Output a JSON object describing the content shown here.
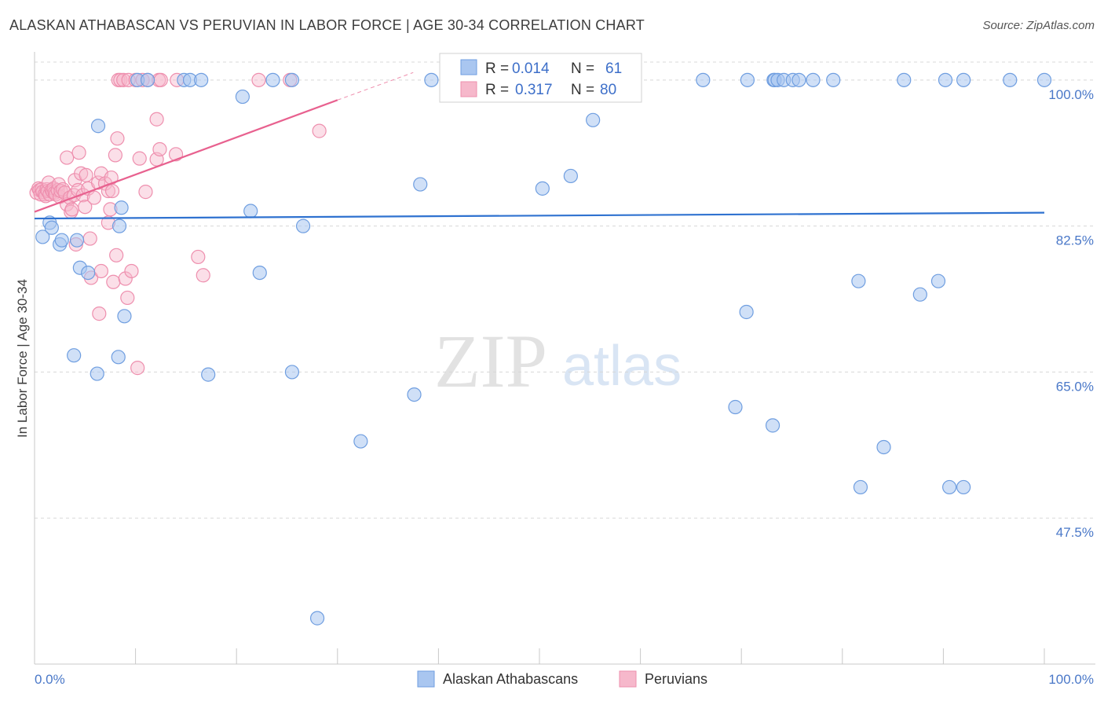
{
  "header": {
    "title": "ALASKAN ATHABASCAN VS PERUVIAN IN LABOR FORCE | AGE 30-34 CORRELATION CHART",
    "source": "Source: ZipAtlas.com"
  },
  "watermark": {
    "zip": "ZIP",
    "atlas": "atlas"
  },
  "colors": {
    "blue_fill": "#a9c6f0",
    "blue_stroke": "#6f9ee0",
    "blue_line": "#2f72d0",
    "pink_fill": "#f6b8cb",
    "pink_stroke": "#ee8fae",
    "pink_line": "#e8618f",
    "grid": "#d8d8d8",
    "axis_text": "#4a78c8"
  },
  "chart_data": {
    "type": "scatter",
    "title": "ALASKAN ATHABASCAN VS PERUVIAN IN LABOR FORCE | AGE 30-34 CORRELATION CHART",
    "ylabel": "In Labor Force | Age 30-34",
    "xlabel": "",
    "xlim": [
      0,
      100
    ],
    "ylim": [
      30,
      103
    ],
    "x_tick_labels": [
      "0.0%",
      "100.0%"
    ],
    "y_ticks": [
      {
        "value": 100.0,
        "label": "100.0%"
      },
      {
        "value": 82.5,
        "label": "82.5%"
      },
      {
        "value": 65.0,
        "label": "65.0%"
      },
      {
        "value": 47.5,
        "label": "47.5%"
      }
    ],
    "legend": {
      "position": "top-center",
      "entries": [
        {
          "r_label": "R =",
          "r_value": "0.014",
          "n_label": "N =",
          "n_value": "61"
        },
        {
          "r_label": "R =",
          "r_value": "0.317",
          "n_label": "N =",
          "n_value": "80"
        }
      ]
    },
    "series": [
      {
        "name": "Alaskan Athabascans",
        "trend": {
          "x": [
            0,
            100
          ],
          "y": [
            83.4,
            84.1
          ]
        },
        "points": [
          [
            0.8,
            81.2
          ],
          [
            1.5,
            82.9
          ],
          [
            1.7,
            82.3
          ],
          [
            2.5,
            80.3
          ],
          [
            2.7,
            80.8
          ],
          [
            4.2,
            80.8
          ],
          [
            4.5,
            77.5
          ],
          [
            5.3,
            76.9
          ],
          [
            3.9,
            67.0
          ],
          [
            6.3,
            94.5
          ],
          [
            6.2,
            64.8
          ],
          [
            8.4,
            82.5
          ],
          [
            8.6,
            84.7
          ],
          [
            8.9,
            71.7
          ],
          [
            8.3,
            66.8
          ],
          [
            10.2,
            100.0
          ],
          [
            11.2,
            100.0
          ],
          [
            14.8,
            100.0
          ],
          [
            15.4,
            100.0
          ],
          [
            16.5,
            100.0
          ],
          [
            17.2,
            64.7
          ],
          [
            20.6,
            98.0
          ],
          [
            21.4,
            84.3
          ],
          [
            22.3,
            76.9
          ],
          [
            23.6,
            100.0
          ],
          [
            25.5,
            100.0
          ],
          [
            25.5,
            65.0
          ],
          [
            26.6,
            82.5
          ],
          [
            28.0,
            35.5
          ],
          [
            32.3,
            56.7
          ],
          [
            37.6,
            62.3
          ],
          [
            38.2,
            87.5
          ],
          [
            39.3,
            100.0
          ],
          [
            50.3,
            87.0
          ],
          [
            53.1,
            88.5
          ],
          [
            55.3,
            95.2
          ],
          [
            66.2,
            100.0
          ],
          [
            69.4,
            60.8
          ],
          [
            70.6,
            100.0
          ],
          [
            70.5,
            72.2
          ],
          [
            73.1,
            58.6
          ],
          [
            73.2,
            100.0
          ],
          [
            73.3,
            100.0
          ],
          [
            73.6,
            100.0
          ],
          [
            74.2,
            100.0
          ],
          [
            75.1,
            100.0
          ],
          [
            75.7,
            100.0
          ],
          [
            77.1,
            100.0
          ],
          [
            79.1,
            100.0
          ],
          [
            81.6,
            75.9
          ],
          [
            81.8,
            51.2
          ],
          [
            84.1,
            56.0
          ],
          [
            86.1,
            100.0
          ],
          [
            87.7,
            74.3
          ],
          [
            89.5,
            75.9
          ],
          [
            90.2,
            100.0
          ],
          [
            90.6,
            51.2
          ],
          [
            92.0,
            51.2
          ],
          [
            92.0,
            100.0
          ],
          [
            96.6,
            100.0
          ],
          [
            100.0,
            100.0
          ]
        ]
      },
      {
        "name": "Peruvians",
        "trend": {
          "x": [
            0,
            30
          ],
          "y": [
            84.2,
            97.6
          ]
        },
        "trend_extension": {
          "x": [
            30,
            37.5
          ],
          "y": [
            97.6,
            100.9
          ]
        },
        "points": [
          [
            0.2,
            86.5
          ],
          [
            0.4,
            87.0
          ],
          [
            0.5,
            86.8
          ],
          [
            0.6,
            86.3
          ],
          [
            0.7,
            86.9
          ],
          [
            0.8,
            86.6
          ],
          [
            1.0,
            86.3
          ],
          [
            1.1,
            86.1
          ],
          [
            1.2,
            86.9
          ],
          [
            1.3,
            86.7
          ],
          [
            1.4,
            87.7
          ],
          [
            1.5,
            86.3
          ],
          [
            1.7,
            86.8
          ],
          [
            1.8,
            86.6
          ],
          [
            1.9,
            87.0
          ],
          [
            2.0,
            86.5
          ],
          [
            2.1,
            86.3
          ],
          [
            2.3,
            86.8
          ],
          [
            2.4,
            87.5
          ],
          [
            2.5,
            86.0
          ],
          [
            2.6,
            86.7
          ],
          [
            2.8,
            86.9
          ],
          [
            3.0,
            86.5
          ],
          [
            3.2,
            90.7
          ],
          [
            3.2,
            85.1
          ],
          [
            3.5,
            85.9
          ],
          [
            3.6,
            84.2
          ],
          [
            3.7,
            84.5
          ],
          [
            3.9,
            86.2
          ],
          [
            4.0,
            88.0
          ],
          [
            4.1,
            80.3
          ],
          [
            4.3,
            86.8
          ],
          [
            4.4,
            91.3
          ],
          [
            4.6,
            88.8
          ],
          [
            4.8,
            86.2
          ],
          [
            5.0,
            84.8
          ],
          [
            5.1,
            88.6
          ],
          [
            5.3,
            87.0
          ],
          [
            5.5,
            81.0
          ],
          [
            5.6,
            76.3
          ],
          [
            5.9,
            85.9
          ],
          [
            6.3,
            87.7
          ],
          [
            6.4,
            72.0
          ],
          [
            6.6,
            88.8
          ],
          [
            6.6,
            77.1
          ],
          [
            7.0,
            87.6
          ],
          [
            7.3,
            86.7
          ],
          [
            7.3,
            82.9
          ],
          [
            7.5,
            84.5
          ],
          [
            7.6,
            88.3
          ],
          [
            7.7,
            86.7
          ],
          [
            7.8,
            75.8
          ],
          [
            8.0,
            91.0
          ],
          [
            8.1,
            79.0
          ],
          [
            8.2,
            93.0
          ],
          [
            8.3,
            100.0
          ],
          [
            8.5,
            100.0
          ],
          [
            8.8,
            100.0
          ],
          [
            9.0,
            76.2
          ],
          [
            9.2,
            73.9
          ],
          [
            9.3,
            100.0
          ],
          [
            9.6,
            77.1
          ],
          [
            10.0,
            100.0
          ],
          [
            10.2,
            65.5
          ],
          [
            10.4,
            90.6
          ],
          [
            10.7,
            100.0
          ],
          [
            11.0,
            86.6
          ],
          [
            11.2,
            100.0
          ],
          [
            12.1,
            95.3
          ],
          [
            12.1,
            90.5
          ],
          [
            12.3,
            100.0
          ],
          [
            12.4,
            91.7
          ],
          [
            12.5,
            100.0
          ],
          [
            14.0,
            91.1
          ],
          [
            14.1,
            100.0
          ],
          [
            16.2,
            78.8
          ],
          [
            16.7,
            76.6
          ],
          [
            22.2,
            100.0
          ],
          [
            25.3,
            100.0
          ],
          [
            28.2,
            93.9
          ]
        ]
      }
    ]
  },
  "bottom_legend": [
    "Alaskan Athabascans",
    "Peruvians"
  ]
}
